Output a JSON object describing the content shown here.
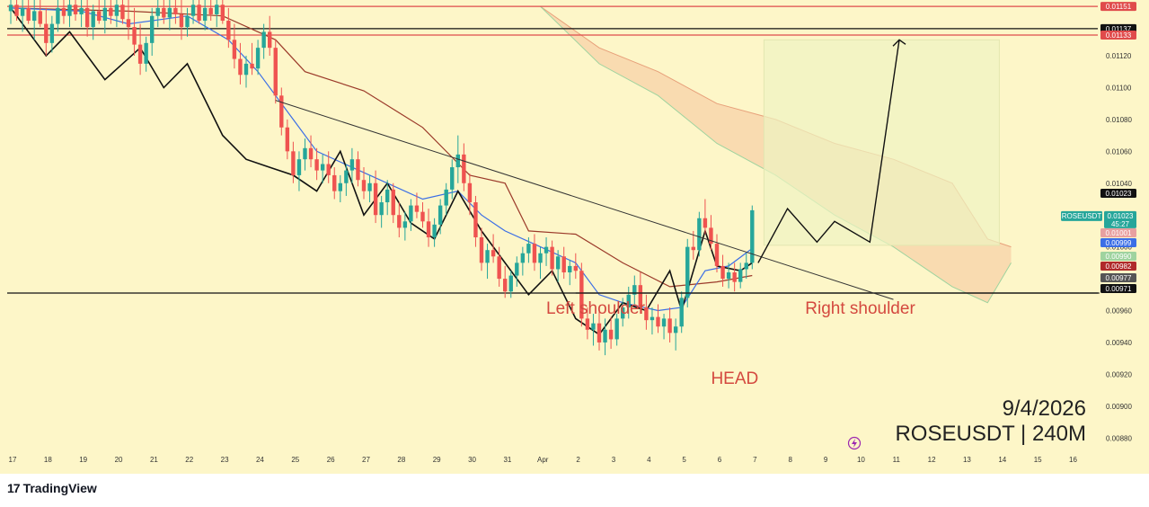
{
  "brand": {
    "mark": "17",
    "name": "TradingView"
  },
  "watermark": {
    "date": "9/4/2026",
    "symbol_line": "ROSEUSDT | 240M"
  },
  "chart_data": {
    "type": "candlestick",
    "symbol": "ROSEUSDT",
    "timeframe": "240M",
    "x_ticks": [
      "17",
      "18",
      "19",
      "20",
      "21",
      "22",
      "23",
      "24",
      "25",
      "26",
      "27",
      "28",
      "29",
      "30",
      "31",
      "Apr",
      "2",
      "3",
      "4",
      "5",
      "6",
      "7",
      "8",
      "9",
      "10",
      "11",
      "12",
      "13",
      "14",
      "15",
      "16"
    ],
    "y_ticks": [
      0.0112,
      0.011,
      0.0108,
      0.0106,
      0.0104,
      0.0102,
      0.01,
      0.0098,
      0.0096,
      0.0094,
      0.0092,
      0.009,
      0.0088
    ],
    "ylim": [
      0.0087,
      0.01155
    ],
    "xlim": [
      16.8,
      16.3
    ],
    "horizontal_levels": [
      {
        "value": 0.01151,
        "label": "0.01151",
        "color": "#e04b4b"
      },
      {
        "value": 0.01137,
        "label": "0.01137",
        "color": "#111111"
      },
      {
        "value": 0.01133,
        "label": "0.01133",
        "color": "#e04b4b"
      },
      {
        "value": 0.00971,
        "label": "0.00971",
        "color": "#111111"
      }
    ],
    "price_tags": [
      {
        "value": 0.01023,
        "label": "0.01023",
        "color": "#111111"
      },
      {
        "value": 0.01001,
        "label": "0.01001",
        "color": "#e8a0a0"
      },
      {
        "value": 0.00999,
        "label": "0.00999",
        "color": "#3b6ee6"
      },
      {
        "value": 0.0099,
        "label": "0.00990",
        "color": "#9fd39f"
      },
      {
        "value": 0.00982,
        "label": "0.00982",
        "color": "#b02a2a"
      },
      {
        "value": 0.00977,
        "label": "0.00977",
        "color": "#555555"
      },
      {
        "value": 0.00971,
        "label": "0.00971",
        "color": "#111111"
      }
    ],
    "last_price_badge": {
      "symbol": "ROSEUSDT",
      "price": "0.01023",
      "countdown": "45:27",
      "value": 0.01023
    },
    "candles": [
      [
        0,
        0.01148,
        0.0116,
        0.0114,
        0.01152
      ],
      [
        1,
        0.01152,
        0.01162,
        0.01142,
        0.01145
      ],
      [
        2,
        0.01145,
        0.01158,
        0.01135,
        0.0115
      ],
      [
        3,
        0.0115,
        0.0116,
        0.0114,
        0.01142
      ],
      [
        4,
        0.01142,
        0.01156,
        0.0113,
        0.01148
      ],
      [
        5,
        0.01148,
        0.0116,
        0.01138,
        0.0114
      ],
      [
        6,
        0.0114,
        0.0115,
        0.0112,
        0.01128
      ],
      [
        7,
        0.01128,
        0.01145,
        0.01122,
        0.0114
      ],
      [
        8,
        0.0114,
        0.01158,
        0.01135,
        0.0115
      ],
      [
        9,
        0.0115,
        0.01162,
        0.0114,
        0.01145
      ],
      [
        10,
        0.01145,
        0.01158,
        0.01138,
        0.01152
      ],
      [
        11,
        0.01152,
        0.0116,
        0.01142,
        0.01146
      ],
      [
        12,
        0.01146,
        0.01158,
        0.01138,
        0.0115
      ],
      [
        13,
        0.0115,
        0.0116,
        0.01132,
        0.01138
      ],
      [
        14,
        0.01138,
        0.01152,
        0.0113,
        0.01148
      ],
      [
        15,
        0.01148,
        0.0116,
        0.0114,
        0.01142
      ],
      [
        16,
        0.01142,
        0.01156,
        0.01134,
        0.0115
      ],
      [
        17,
        0.0115,
        0.0116,
        0.0114,
        0.01145
      ],
      [
        18,
        0.01145,
        0.01158,
        0.01138,
        0.01152
      ],
      [
        19,
        0.01152,
        0.0116,
        0.0114,
        0.01143
      ],
      [
        20,
        0.01143,
        0.01155,
        0.0113,
        0.01138
      ],
      [
        21,
        0.01138,
        0.0115,
        0.0112,
        0.01127
      ],
      [
        22,
        0.01127,
        0.0114,
        0.01108,
        0.01115
      ],
      [
        23,
        0.01115,
        0.01132,
        0.0111,
        0.01128
      ],
      [
        24,
        0.01128,
        0.0115,
        0.0112,
        0.01145
      ],
      [
        25,
        0.01145,
        0.01158,
        0.01138,
        0.0115
      ],
      [
        26,
        0.0115,
        0.0116,
        0.0114,
        0.01144
      ],
      [
        27,
        0.01144,
        0.01156,
        0.01136,
        0.0115
      ],
      [
        28,
        0.0115,
        0.0116,
        0.0114,
        0.01146
      ],
      [
        29,
        0.01146,
        0.01156,
        0.0113,
        0.01138
      ],
      [
        30,
        0.01138,
        0.0115,
        0.01132,
        0.01145
      ],
      [
        31,
        0.01145,
        0.01158,
        0.0114,
        0.01152
      ],
      [
        32,
        0.01152,
        0.0116,
        0.0114,
        0.01142
      ],
      [
        33,
        0.01142,
        0.01156,
        0.01136,
        0.0115
      ],
      [
        34,
        0.0115,
        0.0116,
        0.01142,
        0.01146
      ],
      [
        35,
        0.01146,
        0.01158,
        0.01138,
        0.01152
      ],
      [
        36,
        0.01152,
        0.0116,
        0.0114,
        0.01142
      ],
      [
        37,
        0.01142,
        0.0115,
        0.01125,
        0.0113
      ],
      [
        38,
        0.0113,
        0.0114,
        0.01112,
        0.01118
      ],
      [
        39,
        0.01118,
        0.01128,
        0.01102,
        0.01108
      ],
      [
        40,
        0.01108,
        0.0112,
        0.011,
        0.01115
      ],
      [
        41,
        0.01115,
        0.01128,
        0.01108,
        0.01112
      ],
      [
        42,
        0.01112,
        0.0113,
        0.01108,
        0.01125
      ],
      [
        43,
        0.01125,
        0.0114,
        0.01118,
        0.01135
      ],
      [
        44,
        0.01135,
        0.01145,
        0.0112,
        0.01125
      ],
      [
        45,
        0.01125,
        0.0113,
        0.0109,
        0.01095
      ],
      [
        46,
        0.01095,
        0.011,
        0.0107,
        0.01075
      ],
      [
        47,
        0.01075,
        0.0108,
        0.01055,
        0.0106
      ],
      [
        48,
        0.0106,
        0.01066,
        0.0104,
        0.01045
      ],
      [
        49,
        0.01045,
        0.0106,
        0.01035,
        0.01055
      ],
      [
        50,
        0.01055,
        0.01068,
        0.01048,
        0.01062
      ],
      [
        51,
        0.01062,
        0.0107,
        0.0105,
        0.01055
      ],
      [
        52,
        0.01055,
        0.01062,
        0.01042,
        0.01048
      ],
      [
        53,
        0.01048,
        0.01058,
        0.0104,
        0.01052
      ],
      [
        54,
        0.01052,
        0.0106,
        0.0104,
        0.01045
      ],
      [
        55,
        0.01045,
        0.0105,
        0.0103,
        0.01035
      ],
      [
        56,
        0.01035,
        0.01045,
        0.01028,
        0.0104
      ],
      [
        57,
        0.0104,
        0.01052,
        0.01032,
        0.01048
      ],
      [
        58,
        0.01048,
        0.01062,
        0.0104,
        0.01055
      ],
      [
        59,
        0.01055,
        0.0106,
        0.01038,
        0.01042
      ],
      [
        60,
        0.01042,
        0.0105,
        0.0103,
        0.01035
      ],
      [
        61,
        0.01035,
        0.01045,
        0.01028,
        0.0104
      ],
      [
        62,
        0.0104,
        0.01048,
        0.01015,
        0.0102
      ],
      [
        63,
        0.0102,
        0.01032,
        0.01012,
        0.01028
      ],
      [
        64,
        0.01028,
        0.01042,
        0.0102,
        0.01036
      ],
      [
        65,
        0.01036,
        0.0104,
        0.01015,
        0.0102
      ],
      [
        66,
        0.0102,
        0.01028,
        0.01006,
        0.01012
      ],
      [
        67,
        0.01012,
        0.01022,
        0.01004,
        0.01016
      ],
      [
        68,
        0.01016,
        0.0103,
        0.0101,
        0.01026
      ],
      [
        69,
        0.01026,
        0.01034,
        0.01018,
        0.01022
      ],
      [
        70,
        0.01022,
        0.01028,
        0.01012,
        0.01016
      ],
      [
        71,
        0.01016,
        0.01024,
        0.01,
        0.01006
      ],
      [
        72,
        0.01006,
        0.01018,
        0.01,
        0.01014
      ],
      [
        73,
        0.01014,
        0.0103,
        0.01008,
        0.01026
      ],
      [
        74,
        0.01026,
        0.0104,
        0.0102,
        0.01036
      ],
      [
        75,
        0.01036,
        0.01055,
        0.0103,
        0.0105
      ],
      [
        76,
        0.0105,
        0.0107,
        0.0104,
        0.01058
      ],
      [
        77,
        0.01058,
        0.01065,
        0.01035,
        0.0104
      ],
      [
        78,
        0.0104,
        0.01046,
        0.0102,
        0.01028
      ],
      [
        79,
        0.01028,
        0.01032,
        0.01,
        0.01006
      ],
      [
        80,
        0.01006,
        0.01012,
        0.00985,
        0.0099
      ],
      [
        81,
        0.0099,
        0.01002,
        0.0098,
        0.00998
      ],
      [
        82,
        0.00998,
        0.01008,
        0.0099,
        0.00994
      ],
      [
        83,
        0.00994,
        0.01,
        0.00975,
        0.0098
      ],
      [
        84,
        0.0098,
        0.00988,
        0.00968,
        0.00972
      ],
      [
        85,
        0.00972,
        0.00985,
        0.00968,
        0.00982
      ],
      [
        86,
        0.00982,
        0.00994,
        0.00975,
        0.0099
      ],
      [
        87,
        0.0099,
        0.01,
        0.00982,
        0.00996
      ],
      [
        88,
        0.00996,
        0.01006,
        0.0099,
        0.01002
      ],
      [
        89,
        0.01002,
        0.01008,
        0.00985,
        0.0099
      ],
      [
        90,
        0.0099,
        0.01,
        0.0098,
        0.00996
      ],
      [
        91,
        0.00996,
        0.01006,
        0.00988,
        0.01
      ],
      [
        92,
        0.01,
        0.01004,
        0.00982,
        0.00986
      ],
      [
        93,
        0.00986,
        0.00998,
        0.00978,
        0.00994
      ],
      [
        94,
        0.00994,
        0.01,
        0.0098,
        0.00984
      ],
      [
        95,
        0.00984,
        0.00992,
        0.00976,
        0.00988
      ],
      [
        96,
        0.00988,
        0.00996,
        0.0098,
        0.00985
      ],
      [
        97,
        0.00985,
        0.0099,
        0.0095,
        0.00955
      ],
      [
        98,
        0.00955,
        0.00962,
        0.00942,
        0.00948
      ],
      [
        99,
        0.00948,
        0.00958,
        0.00938,
        0.00952
      ],
      [
        100,
        0.00952,
        0.0096,
        0.00935,
        0.0094
      ],
      [
        101,
        0.0094,
        0.00955,
        0.00932,
        0.00948
      ],
      [
        102,
        0.00948,
        0.00956,
        0.00936,
        0.00942
      ],
      [
        103,
        0.00942,
        0.00958,
        0.00938,
        0.00955
      ],
      [
        104,
        0.00955,
        0.00968,
        0.0095,
        0.00962
      ],
      [
        105,
        0.00962,
        0.00975,
        0.00955,
        0.0097
      ],
      [
        106,
        0.0097,
        0.00982,
        0.00964,
        0.00976
      ],
      [
        107,
        0.00976,
        0.00984,
        0.00958,
        0.00962
      ],
      [
        108,
        0.00962,
        0.0097,
        0.00948,
        0.00954
      ],
      [
        109,
        0.00954,
        0.00962,
        0.00945,
        0.00956
      ],
      [
        110,
        0.00956,
        0.00964,
        0.00946,
        0.0095
      ],
      [
        111,
        0.0095,
        0.00958,
        0.00942,
        0.00955
      ],
      [
        112,
        0.00955,
        0.00962,
        0.0094,
        0.00946
      ],
      [
        113,
        0.00946,
        0.00955,
        0.00935,
        0.0095
      ],
      [
        114,
        0.0095,
        0.00972,
        0.00946,
        0.00968
      ],
      [
        115,
        0.00968,
        0.01005,
        0.00962,
        0.01
      ],
      [
        116,
        0.01,
        0.0101,
        0.00992,
        0.00998
      ],
      [
        117,
        0.00998,
        0.01022,
        0.00994,
        0.01018
      ],
      [
        118,
        0.01018,
        0.0103,
        0.01008,
        0.01012
      ],
      [
        119,
        0.01012,
        0.0102,
        0.00998,
        0.01002
      ],
      [
        120,
        0.01002,
        0.01008,
        0.00984,
        0.00988
      ],
      [
        121,
        0.00988,
        0.00995,
        0.00975,
        0.0098
      ],
      [
        122,
        0.0098,
        0.0099,
        0.00974,
        0.00984
      ],
      [
        123,
        0.00984,
        0.0099,
        0.00972,
        0.00978
      ],
      [
        124,
        0.00978,
        0.0099,
        0.00974,
        0.00986
      ],
      [
        125,
        0.00986,
        0.00996,
        0.0098,
        0.0099
      ],
      [
        126,
        0.0099,
        0.01026,
        0.00986,
        0.01023
      ]
    ],
    "candle_x_start": 0,
    "candle_x_step_days": 0.1667,
    "tenkan": [
      [
        0,
        0.0115
      ],
      [
        12,
        0.01148
      ],
      [
        20,
        0.0114
      ],
      [
        30,
        0.01145
      ],
      [
        37,
        0.0113
      ],
      [
        42,
        0.0111
      ],
      [
        48,
        0.0108
      ],
      [
        52,
        0.0106
      ],
      [
        58,
        0.0105
      ],
      [
        64,
        0.0104
      ],
      [
        70,
        0.0103
      ],
      [
        76,
        0.01035
      ],
      [
        80,
        0.0102
      ],
      [
        84,
        0.0101
      ],
      [
        90,
        0.01
      ],
      [
        96,
        0.0099
      ],
      [
        100,
        0.0097
      ],
      [
        104,
        0.00965
      ],
      [
        110,
        0.0096
      ],
      [
        114,
        0.00962
      ],
      [
        118,
        0.00985
      ],
      [
        122,
        0.00988
      ],
      [
        126,
        0.00999
      ]
    ],
    "kijun": [
      [
        0,
        0.0115
      ],
      [
        20,
        0.01148
      ],
      [
        36,
        0.01145
      ],
      [
        45,
        0.0113
      ],
      [
        50,
        0.0111
      ],
      [
        60,
        0.01098
      ],
      [
        70,
        0.01075
      ],
      [
        78,
        0.01045
      ],
      [
        84,
        0.0104
      ],
      [
        88,
        0.0101
      ],
      [
        96,
        0.01008
      ],
      [
        104,
        0.0099
      ],
      [
        112,
        0.00975
      ],
      [
        120,
        0.00978
      ],
      [
        126,
        0.00982
      ]
    ],
    "chikou": [
      [
        0,
        0.0115
      ],
      [
        6,
        0.0112
      ],
      [
        10,
        0.01135
      ],
      [
        16,
        0.01105
      ],
      [
        22,
        0.01125
      ],
      [
        26,
        0.011
      ],
      [
        30,
        0.01115
      ],
      [
        36,
        0.0107
      ],
      [
        40,
        0.01055
      ],
      [
        44,
        0.0105
      ],
      [
        48,
        0.01045
      ],
      [
        52,
        0.01035
      ],
      [
        56,
        0.0106
      ],
      [
        60,
        0.0102
      ],
      [
        64,
        0.0104
      ],
      [
        68,
        0.01015
      ],
      [
        72,
        0.01005
      ],
      [
        76,
        0.01035
      ],
      [
        80,
        0.0101
      ],
      [
        84,
        0.0099
      ],
      [
        88,
        0.0097
      ],
      [
        92,
        0.00985
      ],
      [
        96,
        0.00955
      ],
      [
        100,
        0.00945
      ],
      [
        104,
        0.00965
      ],
      [
        108,
        0.0096
      ],
      [
        112,
        0.00985
      ],
      [
        114,
        0.0096
      ],
      [
        116,
        0.00985
      ],
      [
        118,
        0.0101
      ],
      [
        120,
        0.00988
      ],
      [
        124,
        0.00985
      ],
      [
        126,
        0.0099
      ]
    ],
    "cloud_upper": [
      [
        90,
        0.01151
      ],
      [
        100,
        0.01125
      ],
      [
        110,
        0.0111
      ],
      [
        120,
        0.0109
      ],
      [
        130,
        0.0108
      ],
      [
        140,
        0.01065
      ],
      [
        150,
        0.01055
      ],
      [
        160,
        0.0104
      ],
      [
        166,
        0.01005
      ],
      [
        170,
        0.01
      ]
    ],
    "cloud_lower": [
      [
        90,
        0.01151
      ],
      [
        100,
        0.01115
      ],
      [
        110,
        0.01095
      ],
      [
        120,
        0.01065
      ],
      [
        130,
        0.01045
      ],
      [
        140,
        0.0102
      ],
      [
        150,
        0.01
      ],
      [
        160,
        0.00975
      ],
      [
        166,
        0.00965
      ],
      [
        170,
        0.0099
      ]
    ],
    "neckline": {
      "value": 0.00971,
      "from_x": 96,
      "to_x": 185
    },
    "trendline": [
      [
        45,
        0.01092
      ],
      [
        150,
        0.00967
      ]
    ],
    "projection_box": {
      "x0": 128,
      "x1": 168,
      "y0": 0.0113,
      "y1": 0.01001
    },
    "projection_path": [
      [
        127,
        0.0099
      ],
      [
        132,
        0.01024
      ],
      [
        137,
        0.01003
      ],
      [
        140,
        0.01016
      ],
      [
        146,
        0.01003
      ],
      [
        151,
        0.0113
      ]
    ],
    "annotations": [
      {
        "text": "Left shoulder",
        "x": 91,
        "y": 0.00958
      },
      {
        "text": "HEAD",
        "x": 119,
        "y": 0.00914
      },
      {
        "text": "Right shoulder",
        "x": 135,
        "y": 0.00958
      }
    ]
  }
}
